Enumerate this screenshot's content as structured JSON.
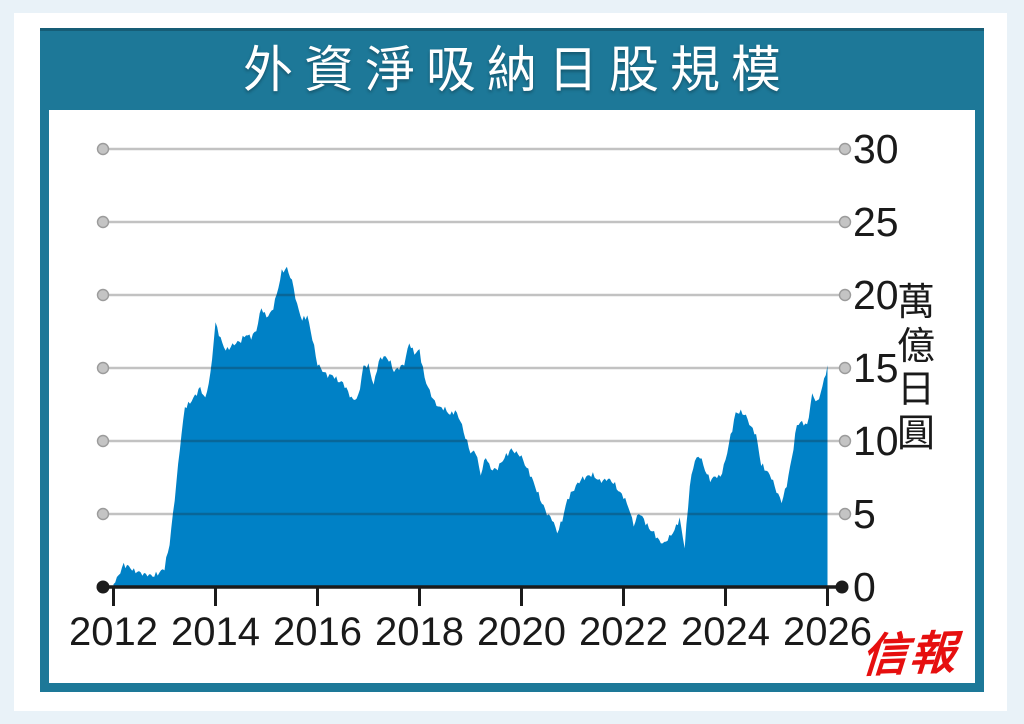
{
  "page": {
    "background": "#e9f2f8",
    "card_background": "#ffffff",
    "frame_color": "#1d7898"
  },
  "header": {
    "title": "外資淨吸納日股規模",
    "title_color": "#ffffff"
  },
  "logo": {
    "text": "信報",
    "color": "#e60f0f"
  },
  "chart_data": {
    "type": "area",
    "title": "外資淨吸納日股規模",
    "ylabel": "萬億日圓",
    "xlabel": "",
    "xlim": [
      2012,
      2026
    ],
    "ylim": [
      0,
      30
    ],
    "y_ticks": [
      0,
      5,
      10,
      15,
      20,
      25,
      30
    ],
    "x_ticks": [
      2012,
      2014,
      2016,
      2018,
      2020,
      2022,
      2024,
      2026
    ],
    "grid": true,
    "legend_position": "none",
    "area_color": "#0081c6",
    "grid_color": "rgba(30,30,30,0.27)",
    "axis_color": "#1b1b1b",
    "series": [
      {
        "name": "外資淨吸納日股規模 (萬億日圓)",
        "x_start": 2012.0,
        "x_step": 0.1,
        "values": [
          0.2,
          0.8,
          1.5,
          1.4,
          1.1,
          1.0,
          0.9,
          0.8,
          0.8,
          1.0,
          1.3,
          3.0,
          6.0,
          9.5,
          12.3,
          12.6,
          13.1,
          13.6,
          12.9,
          14.5,
          18.1,
          17.0,
          16.2,
          16.5,
          16.7,
          16.9,
          17.3,
          17.1,
          17.6,
          19.1,
          18.5,
          18.8,
          20.0,
          21.6,
          21.8,
          21.0,
          19.3,
          18.3,
          18.6,
          17.0,
          15.3,
          14.8,
          14.5,
          14.5,
          14.1,
          14.0,
          13.3,
          12.8,
          13.0,
          15.1,
          15.2,
          13.8,
          15.5,
          15.8,
          15.6,
          14.8,
          15.0,
          15.3,
          16.7,
          16.0,
          16.2,
          14.3,
          13.4,
          12.6,
          12.3,
          12.2,
          11.8,
          12.1,
          11.4,
          10.3,
          9.2,
          9.3,
          7.7,
          8.9,
          8.1,
          8.0,
          8.5,
          9.0,
          9.4,
          9.2,
          8.9,
          8.2,
          7.5,
          6.6,
          5.8,
          5.0,
          4.7,
          3.7,
          4.6,
          6.0,
          6.5,
          7.1,
          7.4,
          7.6,
          7.7,
          7.3,
          7.3,
          7.4,
          7.2,
          6.6,
          6.2,
          5.5,
          4.2,
          5.1,
          4.6,
          4.0,
          3.7,
          3.1,
          3.0,
          3.4,
          3.9,
          4.7,
          2.7,
          7.0,
          8.7,
          9.0,
          8.0,
          7.3,
          7.6,
          7.5,
          8.7,
          10.3,
          11.9,
          12.0,
          11.7,
          11.0,
          10.4,
          8.4,
          8.0,
          7.5,
          6.6,
          5.8,
          7.0,
          8.8,
          11.1,
          11.3,
          11.0,
          13.2,
          12.6,
          13.7,
          15.2
        ]
      }
    ]
  }
}
